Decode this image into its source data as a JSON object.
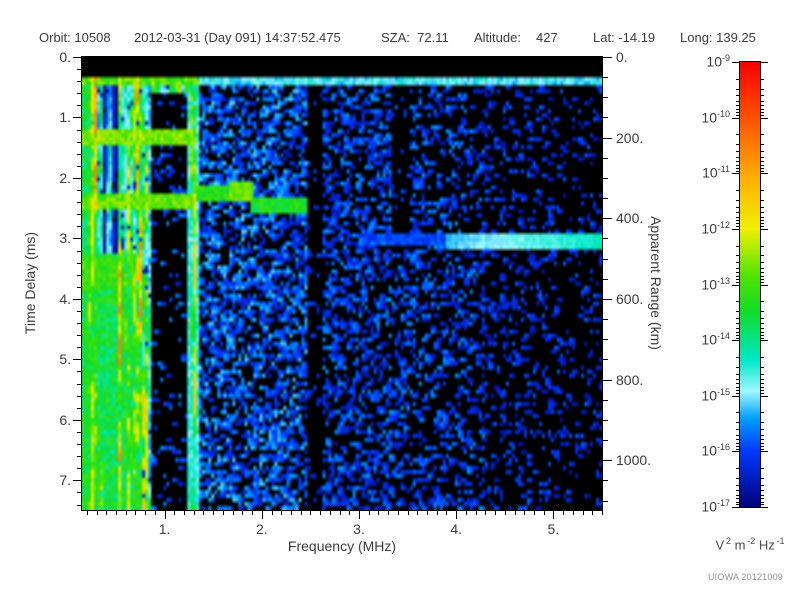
{
  "header": {
    "orbit": "Orbit: 10508",
    "datetime": "2012-03-31 (Day 091) 14:37:52.475",
    "sza": "SZA:  72.11",
    "altitude_label": "Altitude:",
    "altitude_value": "427",
    "lat": "Lat: -14.19",
    "long": "Long: 139.25"
  },
  "credit": "UIOWA 20121009",
  "chart_data": {
    "type": "heatmap",
    "description": "Radar sounder ionogram: echo spectral density vs frequency and time delay",
    "x_axis": {
      "label": "Frequency (MHz)",
      "range": [
        0.15,
        5.5
      ],
      "major_ticks": [
        1,
        2,
        3,
        4,
        5
      ],
      "major_labels": [
        "1.",
        "2.",
        "3.",
        "4.",
        "5."
      ],
      "minor_step": 0.1
    },
    "y_axis": {
      "label": "Time Delay (ms)",
      "range": [
        0,
        7.49
      ],
      "major_ticks": [
        0,
        1,
        2,
        3,
        4,
        5,
        6,
        7
      ],
      "major_labels": [
        "0.",
        "1.",
        "2.",
        "3.",
        "4.",
        "5.",
        "6.",
        "7."
      ],
      "minor_step": 0.2
    },
    "y2_axis": {
      "label": "Apparent Range (km)",
      "km_per_ms": 150,
      "major_ticks": [
        0,
        200,
        400,
        600,
        800,
        1000
      ],
      "major_labels": [
        "0.",
        "200.",
        "400.",
        "600.",
        "800.",
        "1000."
      ],
      "minor_step": 50,
      "max": 1120
    },
    "colorbar": {
      "exponent_base": "10",
      "exponents": [
        -9,
        -10,
        -11,
        -12,
        -13,
        -14,
        -15,
        -16,
        -17
      ],
      "units_parts": [
        {
          "b": "V",
          "e": "2"
        },
        {
          "b": "m",
          "e": "-2"
        },
        {
          "b": "Hz",
          "e": "-1"
        }
      ],
      "stops": [
        {
          "v": 0.0,
          "c": "#000078"
        },
        {
          "v": 0.125,
          "c": "#0038FF"
        },
        {
          "v": 0.2,
          "c": "#00A0FF"
        },
        {
          "v": 0.26,
          "c": "#9EF8FF"
        },
        {
          "v": 0.33,
          "c": "#00E8C8"
        },
        {
          "v": 0.44,
          "c": "#10DC28"
        },
        {
          "v": 0.52,
          "c": "#52E400"
        },
        {
          "v": 0.625,
          "c": "#F0F000"
        },
        {
          "v": 0.75,
          "c": "#FFA800"
        },
        {
          "v": 0.875,
          "c": "#FF5000"
        },
        {
          "v": 1.0,
          "c": "#F80000"
        }
      ]
    },
    "heatmap": {
      "seed": 1337,
      "grid": [
        173,
        113
      ],
      "features": [
        {
          "type": "vstripes",
          "f": [
            0.15,
            1.3
          ],
          "t": [
            0.24,
            7.49
          ],
          "base": [
            0.28,
            0.55
          ],
          "bright_f": [
            0.27,
            0.52,
            0.72,
            1.15
          ],
          "bright_v": 0.6,
          "gap_p": 0.06
        },
        {
          "type": "hband",
          "f": [
            0.15,
            0.26
          ],
          "t": [
            0.24,
            7.49
          ],
          "v": [
            0.34,
            0.48
          ]
        },
        {
          "type": "clear",
          "f": [
            0.88,
            1.24
          ],
          "t": [
            0.62,
            7.49
          ]
        },
        {
          "type": "speckle",
          "f": [
            0.88,
            1.24
          ],
          "t": [
            0.62,
            7.49
          ],
          "p": [
            0.1,
            0.1
          ],
          "v": [
            0.08,
            0.2
          ]
        },
        {
          "type": "clear",
          "f": [
            1.36,
            1.64
          ],
          "t": [
            0.5,
            2.15
          ]
        },
        {
          "type": "speckle",
          "f": [
            1.36,
            1.64
          ],
          "t": [
            0.5,
            2.15
          ],
          "p": [
            0.1,
            0.1
          ],
          "v": [
            0.08,
            0.2
          ]
        },
        {
          "type": "speckle",
          "f": [
            1.3,
            2.44
          ],
          "t": [
            0.24,
            7.49
          ],
          "p": [
            0.46,
            0.46
          ],
          "v": [
            0.07,
            0.24
          ]
        },
        {
          "type": "speckle",
          "f": [
            2.44,
            2.64
          ],
          "t": [
            0.24,
            7.49
          ],
          "p": [
            0.06,
            0.06
          ],
          "v": [
            0.07,
            0.15
          ]
        },
        {
          "type": "speckle",
          "f": [
            2.64,
            4.3
          ],
          "t": [
            0.24,
            7.49
          ],
          "p": [
            0.4,
            0.26
          ],
          "v": [
            0.06,
            0.2
          ]
        },
        {
          "type": "speckle",
          "f": [
            4.3,
            5.5
          ],
          "t": [
            0.24,
            7.49
          ],
          "p": [
            0.2,
            0.12
          ],
          "v": [
            0.05,
            0.16
          ]
        },
        {
          "type": "clear",
          "f": [
            3.34,
            3.52
          ],
          "t": [
            0.42,
            3.2
          ]
        },
        {
          "type": "speckle",
          "f": [
            3.34,
            3.52
          ],
          "t": [
            0.42,
            3.2
          ],
          "p": [
            0.12,
            0.12
          ],
          "v": [
            0.07,
            0.16
          ]
        },
        {
          "type": "vline",
          "f": [
            1.25,
            1.32
          ],
          "t": [
            0.24,
            7.49
          ],
          "v": [
            0.26,
            0.36
          ]
        },
        {
          "type": "hband",
          "f": [
            0.15,
            1.32
          ],
          "t": [
            0.26,
            0.42
          ],
          "v": [
            0.42,
            0.58
          ]
        },
        {
          "type": "hband",
          "f": [
            1.32,
            5.5
          ],
          "t": [
            0.26,
            0.42
          ],
          "v": [
            0.2,
            0.33
          ]
        },
        {
          "type": "hband",
          "f": [
            0.15,
            1.28
          ],
          "t": [
            1.22,
            1.43
          ],
          "v": [
            0.48,
            0.6
          ]
        },
        {
          "type": "hband",
          "f": [
            0.15,
            1.28
          ],
          "t": [
            2.28,
            2.5
          ],
          "v": [
            0.46,
            0.58
          ]
        },
        {
          "type": "hband",
          "f": [
            0.15,
            0.75
          ],
          "t": [
            3.3,
            7.49
          ],
          "v": [
            0.34,
            0.5
          ]
        },
        {
          "type": "hband",
          "f": [
            0.15,
            0.52
          ],
          "t": [
            3.35,
            3.8
          ],
          "v": [
            0.44,
            0.54
          ]
        },
        {
          "type": "hband",
          "f": [
            1.3,
            1.88
          ],
          "t": [
            2.14,
            2.32
          ],
          "v": [
            0.42,
            0.52
          ]
        },
        {
          "type": "hband",
          "f": [
            1.68,
            1.9
          ],
          "t": [
            2.08,
            2.36
          ],
          "v": [
            0.5,
            0.57
          ]
        },
        {
          "type": "hband",
          "f": [
            1.88,
            2.44
          ],
          "t": [
            2.32,
            2.52
          ],
          "v": [
            0.4,
            0.5
          ]
        },
        {
          "type": "hband",
          "f": [
            3.0,
            3.92
          ],
          "t": [
            2.97,
            3.1
          ],
          "v": [
            0.1,
            0.16
          ]
        },
        {
          "type": "ramp",
          "f": [
            3.92,
            5.5
          ],
          "t": [
            2.94,
            3.13
          ],
          "v0": 0.2,
          "v1": 0.32,
          "jitter": 0.04
        },
        {
          "type": "clear",
          "f": [
            0.15,
            5.5
          ],
          "t": [
            0.0,
            0.24
          ]
        }
      ]
    }
  }
}
